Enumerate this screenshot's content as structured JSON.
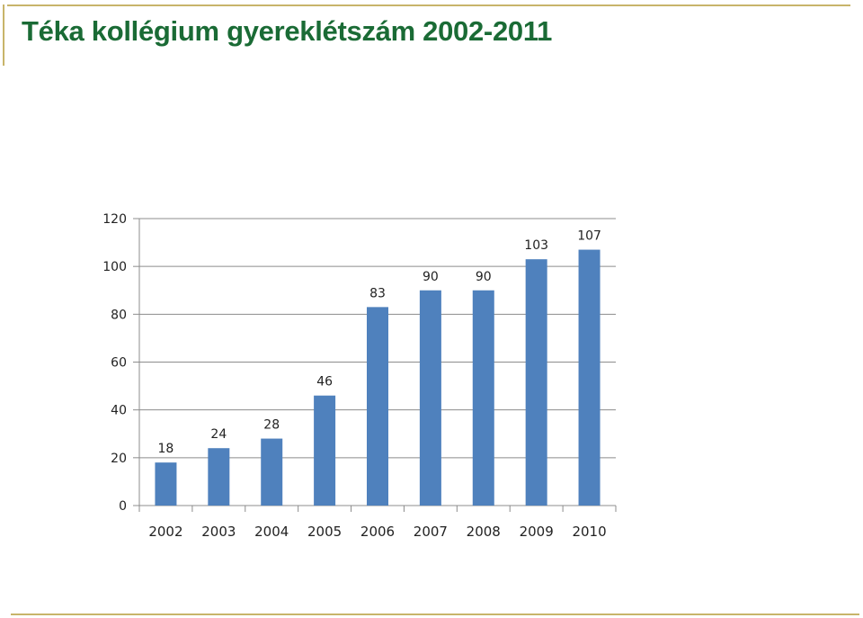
{
  "slide": {
    "title": "Téka kollégium  gyereklétszám 2002-2011",
    "accent_color": "#1a6b35",
    "rule_color": "#c8b46a"
  },
  "chart_data": {
    "type": "bar",
    "title": "",
    "xlabel": "",
    "ylabel": "",
    "categories": [
      "2002",
      "2003",
      "2004",
      "2005",
      "2006",
      "2007",
      "2008",
      "2009",
      "2010"
    ],
    "values": [
      18,
      24,
      28,
      46,
      83,
      90,
      90,
      103,
      107
    ],
    "data_labels": [
      "18",
      "24",
      "28",
      "46",
      "83",
      "90",
      "90",
      "103",
      "107"
    ],
    "ylim": [
      0,
      120
    ],
    "yticks": [
      0,
      20,
      40,
      60,
      80,
      100,
      120
    ],
    "ytick_labels": [
      "0",
      "20",
      "40",
      "60",
      "80",
      "100",
      "120"
    ],
    "grid": true,
    "legend": "none",
    "bar_color": "#4f81bd"
  }
}
